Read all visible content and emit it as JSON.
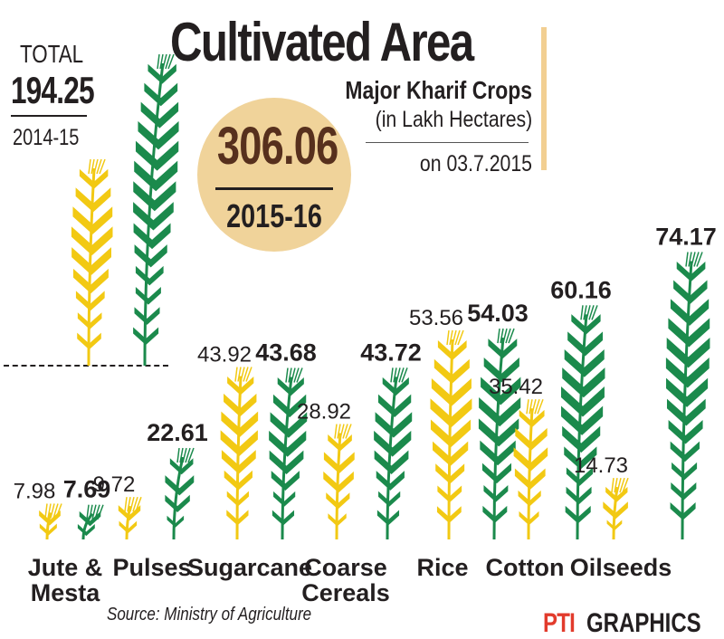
{
  "header": {
    "title": "Cultivated Area",
    "subtitle": "Major Kharif Crops",
    "unit": "(in Lakh Hectares)",
    "date": "on 03.7.2015"
  },
  "totals": {
    "label": "TOTAL",
    "previous_value": "194.25",
    "previous_year": "2014-15",
    "current_value": "306.06",
    "current_year": "2015-16"
  },
  "footer": {
    "source": "Source: Ministry of Agriculture",
    "logo_brand": "PTI",
    "logo_text": "GRAPHICS"
  },
  "colors": {
    "year_2014_15": "#f2c913",
    "year_2015_16": "#1b8a4c",
    "badge": "#f0d39a",
    "badge_text": "#57301d"
  },
  "chart_data": {
    "type": "bar",
    "categories": [
      "Jute & Mesta",
      "Pulses",
      "Sugarcane",
      "Coarse Cereals",
      "Rice",
      "Cotton",
      "Oilseeds"
    ],
    "series": [
      {
        "name": "2014-15",
        "values": [
          7.98,
          9.72,
          43.92,
          28.92,
          53.56,
          35.42,
          14.73
        ]
      },
      {
        "name": "2015-16",
        "values": [
          7.69,
          22.61,
          43.68,
          43.72,
          54.03,
          60.16,
          74.17
        ]
      }
    ],
    "totals": {
      "2014-15": 194.25,
      "2015-16": 306.06
    },
    "ylabel": "(in Lakh Hectares)",
    "ylim": [
      0,
      80
    ],
    "grid": false,
    "legend": "none"
  }
}
